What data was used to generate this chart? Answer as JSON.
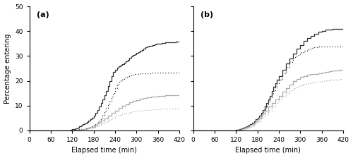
{
  "title_a": "(a)",
  "title_b": "(b)",
  "xlabel": "Elapsed time (min)",
  "ylabel": "Percentage entering",
  "xlim": [
    0,
    420
  ],
  "ylim": [
    0,
    50
  ],
  "xticks": [
    0,
    60,
    120,
    180,
    240,
    300,
    360,
    420
  ],
  "yticks": [
    0,
    10,
    20,
    30,
    40,
    50
  ],
  "background_color": "#ffffff",
  "panel_a": {
    "black_solid": {
      "x": [
        0,
        60,
        90,
        100,
        110,
        115,
        120,
        125,
        130,
        135,
        140,
        145,
        150,
        155,
        160,
        165,
        170,
        175,
        180,
        185,
        190,
        195,
        200,
        205,
        210,
        215,
        220,
        225,
        230,
        235,
        240,
        245,
        250,
        255,
        260,
        265,
        270,
        275,
        280,
        285,
        290,
        295,
        300,
        305,
        310,
        315,
        320,
        325,
        330,
        335,
        340,
        345,
        350,
        355,
        360,
        370,
        380,
        390,
        400,
        410,
        420
      ],
      "y": [
        0,
        0,
        0,
        0,
        0.1,
        0.2,
        0.4,
        0.6,
        0.9,
        1.2,
        1.6,
        2.0,
        2.4,
        2.9,
        3.4,
        3.9,
        4.5,
        5.2,
        6.0,
        7.0,
        8.2,
        9.5,
        11,
        12.5,
        14.2,
        16,
        18,
        20,
        22,
        23.5,
        24.5,
        25.2,
        25.8,
        26.3,
        26.8,
        27.3,
        27.8,
        28.5,
        29.2,
        29.8,
        30.3,
        30.8,
        31.2,
        31.5,
        32.0,
        32.5,
        33.0,
        33.4,
        33.7,
        34.0,
        34.2,
        34.5,
        34.7,
        34.9,
        35.0,
        35.2,
        35.4,
        35.5,
        35.6,
        35.7,
        35.8
      ],
      "color": "#303030",
      "linestyle": "solid",
      "linewidth": 0.9
    },
    "black_dotted": {
      "x": [
        0,
        60,
        90,
        100,
        110,
        115,
        120,
        125,
        130,
        135,
        140,
        145,
        150,
        155,
        160,
        165,
        170,
        175,
        180,
        185,
        190,
        195,
        200,
        205,
        210,
        215,
        220,
        225,
        230,
        235,
        240,
        245,
        250,
        255,
        260,
        265,
        270,
        275,
        280,
        285,
        290,
        295,
        300,
        305,
        310,
        315,
        320,
        325,
        330,
        340,
        350,
        360,
        370,
        380,
        390,
        400,
        410,
        420
      ],
      "y": [
        0,
        0,
        0,
        0,
        0,
        0.05,
        0.1,
        0.15,
        0.2,
        0.3,
        0.4,
        0.5,
        0.6,
        0.8,
        1.0,
        1.2,
        1.5,
        1.8,
        2.2,
        2.7,
        3.3,
        4.0,
        5.0,
        6.2,
        7.5,
        9.0,
        10.5,
        12,
        13.5,
        15,
        17,
        18.5,
        19.5,
        20.2,
        20.8,
        21.2,
        21.6,
        21.9,
        22.2,
        22.4,
        22.5,
        22.6,
        22.7,
        22.8,
        22.9,
        23.0,
        23.0,
        23.1,
        23.1,
        23.2,
        23.2,
        23.2,
        23.3,
        23.3,
        23.3,
        23.3,
        23.3,
        23.3
      ],
      "color": "#303030",
      "linestyle": "dotted",
      "linewidth": 0.9
    },
    "gray_solid": {
      "x": [
        0,
        60,
        90,
        100,
        110,
        115,
        120,
        125,
        130,
        135,
        140,
        145,
        150,
        155,
        160,
        165,
        170,
        175,
        180,
        185,
        190,
        195,
        200,
        210,
        220,
        230,
        240,
        250,
        260,
        270,
        280,
        290,
        300,
        310,
        320,
        330,
        340,
        350,
        360,
        370,
        380,
        390,
        400,
        410,
        420
      ],
      "y": [
        0,
        0,
        0,
        0,
        0,
        0,
        0.05,
        0.1,
        0.15,
        0.2,
        0.3,
        0.4,
        0.5,
        0.6,
        0.8,
        1.0,
        1.2,
        1.5,
        1.8,
        2.2,
        2.7,
        3.2,
        3.8,
        4.8,
        5.8,
        7.0,
        8.0,
        9.0,
        9.8,
        10.5,
        11.2,
        11.8,
        12.3,
        12.7,
        13.0,
        13.3,
        13.5,
        13.7,
        13.9,
        14.0,
        14.1,
        14.2,
        14.3,
        14.3,
        14.4
      ],
      "color": "#aaaaaa",
      "linestyle": "solid",
      "linewidth": 0.9
    },
    "gray_dotted": {
      "x": [
        0,
        60,
        90,
        100,
        110,
        115,
        120,
        125,
        130,
        135,
        140,
        145,
        150,
        155,
        160,
        165,
        170,
        175,
        180,
        185,
        190,
        200,
        210,
        220,
        230,
        240,
        250,
        260,
        270,
        280,
        290,
        300,
        310,
        320,
        330,
        340,
        350,
        360,
        370,
        380,
        390,
        400,
        410,
        420
      ],
      "y": [
        0,
        0,
        0,
        0,
        0,
        0,
        0,
        0.05,
        0.1,
        0.15,
        0.2,
        0.3,
        0.4,
        0.5,
        0.6,
        0.8,
        1.0,
        1.2,
        1.5,
        1.8,
        2.2,
        2.8,
        3.5,
        4.2,
        5.0,
        5.8,
        6.3,
        6.7,
        7.0,
        7.3,
        7.6,
        7.8,
        8.0,
        8.2,
        8.3,
        8.4,
        8.5,
        8.6,
        8.7,
        8.75,
        8.8,
        8.85,
        8.9,
        8.95
      ],
      "color": "#aaaaaa",
      "linestyle": "dotted",
      "linewidth": 0.9
    }
  },
  "panel_b": {
    "black_solid": {
      "x": [
        0,
        60,
        90,
        100,
        110,
        115,
        120,
        125,
        130,
        135,
        140,
        145,
        150,
        155,
        160,
        165,
        170,
        175,
        180,
        185,
        190,
        195,
        200,
        205,
        210,
        215,
        220,
        225,
        230,
        235,
        240,
        250,
        260,
        270,
        280,
        290,
        300,
        310,
        320,
        330,
        340,
        350,
        360,
        370,
        380,
        390,
        400,
        410,
        420
      ],
      "y": [
        0,
        0,
        0,
        0,
        0.05,
        0.1,
        0.2,
        0.3,
        0.5,
        0.7,
        1.0,
        1.3,
        1.7,
        2.1,
        2.6,
        3.1,
        3.7,
        4.4,
        5.2,
        6.0,
        7.0,
        8.2,
        9.5,
        11,
        12.5,
        14,
        16,
        17.5,
        19,
        20.5,
        22,
        24.5,
        27,
        29,
        31,
        33,
        34.5,
        36,
        37.2,
        38.2,
        39.0,
        39.7,
        40.2,
        40.5,
        40.7,
        40.8,
        40.9,
        41.0,
        41.0
      ],
      "color": "#303030",
      "linestyle": "solid",
      "linewidth": 0.9
    },
    "black_dotted": {
      "x": [
        0,
        60,
        90,
        100,
        110,
        115,
        120,
        125,
        130,
        135,
        140,
        145,
        150,
        155,
        160,
        165,
        170,
        175,
        180,
        185,
        190,
        195,
        200,
        205,
        210,
        215,
        220,
        225,
        230,
        235,
        240,
        250,
        260,
        270,
        280,
        290,
        300,
        310,
        320,
        330,
        340,
        350,
        360,
        370,
        380,
        390,
        400,
        410,
        420
      ],
      "y": [
        0,
        0,
        0,
        0,
        0,
        0.05,
        0.1,
        0.2,
        0.3,
        0.5,
        0.7,
        1.0,
        1.3,
        1.7,
        2.1,
        2.6,
        3.1,
        3.7,
        4.4,
        5.2,
        6.2,
        7.3,
        8.5,
        10,
        11.5,
        13,
        14.5,
        16,
        17.5,
        19,
        20.5,
        23,
        25.5,
        27.5,
        29.5,
        30.5,
        31.5,
        32.2,
        32.8,
        33.2,
        33.5,
        33.7,
        33.8,
        33.8,
        33.8,
        33.8,
        33.8,
        33.8,
        33.8
      ],
      "color": "#303030",
      "linestyle": "dotted",
      "linewidth": 0.9
    },
    "gray_solid": {
      "x": [
        0,
        60,
        90,
        100,
        110,
        115,
        120,
        125,
        130,
        135,
        140,
        145,
        150,
        155,
        160,
        165,
        170,
        175,
        180,
        185,
        190,
        195,
        200,
        210,
        220,
        230,
        240,
        250,
        260,
        270,
        280,
        290,
        300,
        310,
        320,
        330,
        340,
        350,
        360,
        370,
        380,
        390,
        400,
        410,
        420
      ],
      "y": [
        0,
        0,
        0,
        0,
        0,
        0,
        0.1,
        0.2,
        0.3,
        0.5,
        0.7,
        1.0,
        1.3,
        1.7,
        2.1,
        2.6,
        3.1,
        3.7,
        4.4,
        5.2,
        6.0,
        6.8,
        7.8,
        9.5,
        11,
        12.5,
        14,
        15.5,
        17,
        18.5,
        19.8,
        20.8,
        21.5,
        22.0,
        22.4,
        22.6,
        22.8,
        23.0,
        23.2,
        23.5,
        23.8,
        24.0,
        24.2,
        24.4,
        24.6
      ],
      "color": "#aaaaaa",
      "linestyle": "solid",
      "linewidth": 0.9
    },
    "gray_dotted": {
      "x": [
        0,
        60,
        90,
        100,
        110,
        115,
        120,
        125,
        130,
        135,
        140,
        145,
        150,
        155,
        160,
        165,
        170,
        175,
        180,
        185,
        190,
        195,
        200,
        210,
        220,
        230,
        240,
        250,
        260,
        270,
        280,
        290,
        300,
        310,
        320,
        330,
        340,
        350,
        360,
        370,
        380,
        390,
        400,
        410,
        420
      ],
      "y": [
        0,
        0,
        0,
        0,
        0,
        0,
        0,
        0.1,
        0.2,
        0.3,
        0.4,
        0.6,
        0.8,
        1.1,
        1.4,
        1.8,
        2.2,
        2.7,
        3.3,
        4.0,
        4.8,
        5.6,
        6.5,
        8.0,
        9.5,
        11,
        12.5,
        13.8,
        15,
        16.1,
        17,
        17.7,
        18.2,
        18.6,
        19.0,
        19.3,
        19.5,
        19.7,
        19.9,
        20.1,
        20.3,
        20.4,
        20.5,
        20.6,
        20.7
      ],
      "color": "#aaaaaa",
      "linestyle": "dotted",
      "linewidth": 0.9
    }
  }
}
